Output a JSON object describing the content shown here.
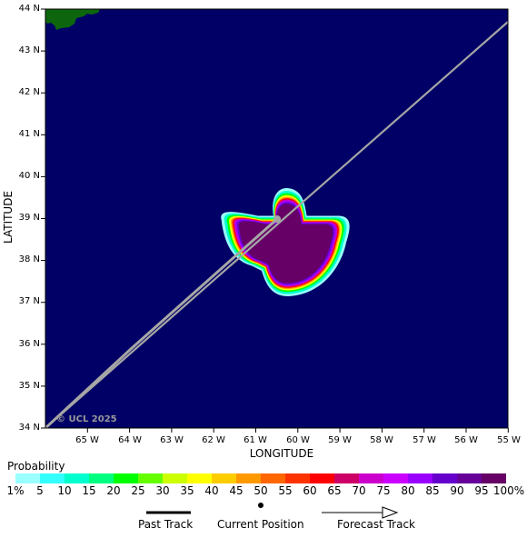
{
  "map": {
    "x_axis_title": "LONGITUDE",
    "y_axis_title": "LATITUDE",
    "copyright": "© UCL 2025",
    "lat_labels": [
      "44 N",
      "43 N",
      "42 N",
      "41 N",
      "40 N",
      "39 N",
      "38 N",
      "37 N",
      "36 N",
      "35 N",
      "34 N"
    ],
    "lon_labels": [
      "65 W",
      "64 W",
      "63 W",
      "62 W",
      "61 W",
      "60 W",
      "59 W",
      "58 W",
      "57 W",
      "56 W",
      "55 W"
    ],
    "colors": {
      "ocean": "#000066",
      "land": "#0d660d",
      "track": "#a6a6a6"
    },
    "storm_position": {
      "lon": -60.4,
      "lat": 39.0
    }
  },
  "legend": {
    "probability_title": "Probability",
    "scale_labels": [
      "1%",
      "5",
      "10",
      "15",
      "20",
      "25",
      "30",
      "35",
      "40",
      "45",
      "50",
      "55",
      "60",
      "65",
      "70",
      "75",
      "80",
      "85",
      "90",
      "95",
      "100%"
    ],
    "scale_colors": [
      "#99ffff",
      "#33ffff",
      "#00ffcc",
      "#00ff80",
      "#00ff00",
      "#66ff00",
      "#ccff00",
      "#ffff00",
      "#ffcc00",
      "#ff9900",
      "#ff6600",
      "#ff3300",
      "#ff0000",
      "#cc0066",
      "#cc00cc",
      "#cc00ff",
      "#9900ff",
      "#6600cc",
      "#660099",
      "#660066"
    ],
    "past_track": "Past Track",
    "current_position": "Current Position",
    "forecast_track": "Forecast Track"
  }
}
